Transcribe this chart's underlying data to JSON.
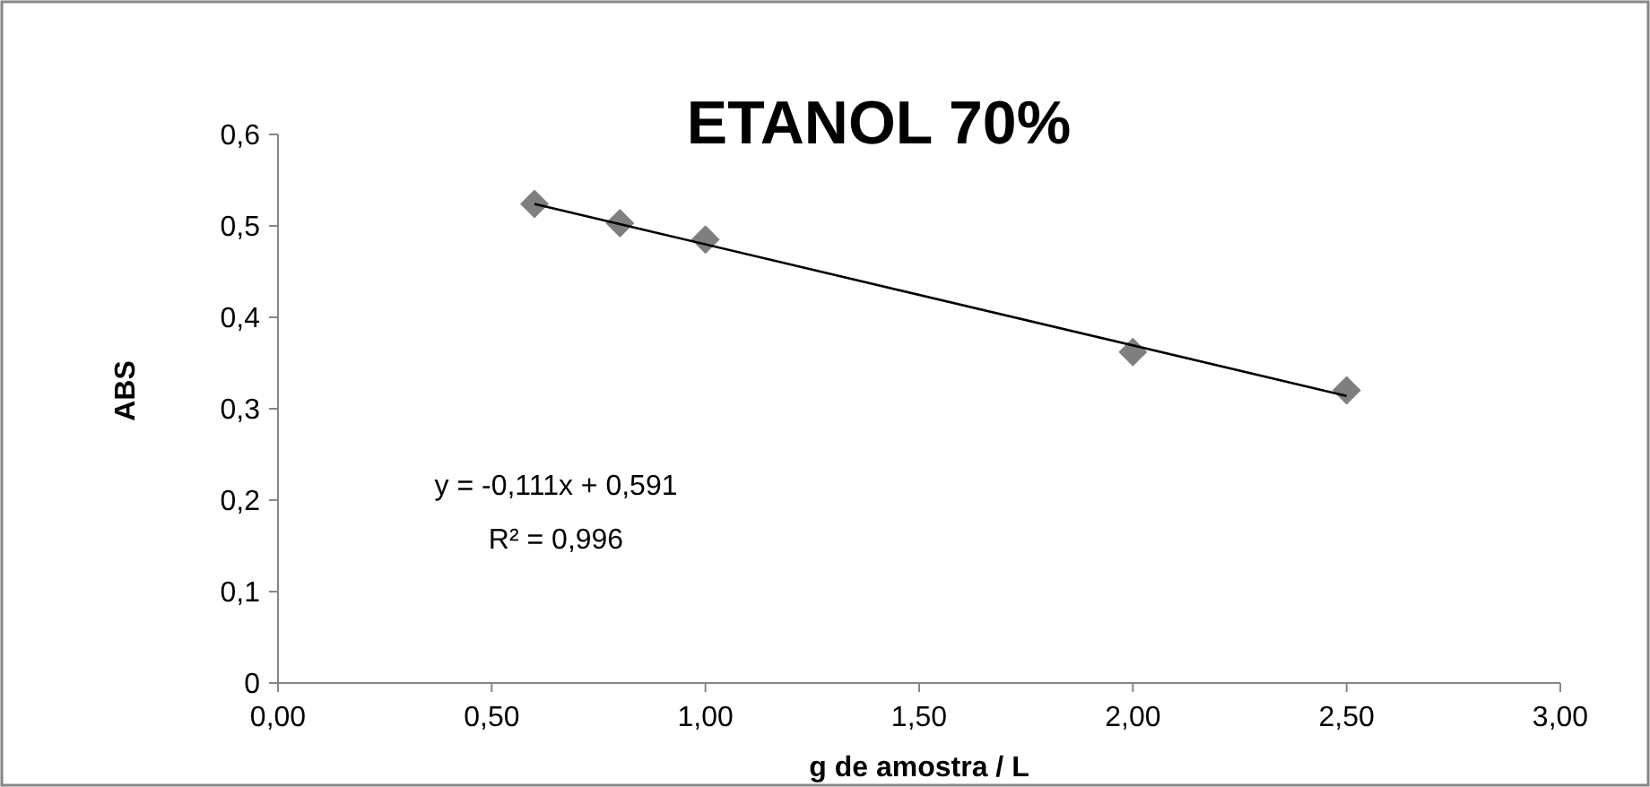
{
  "chart_data": {
    "type": "scatter",
    "title": "ETANOL 70%",
    "xlabel": "g de amostra / L",
    "ylabel": "ABS",
    "xlim": [
      0,
      3
    ],
    "xticks": [
      {
        "value": 0,
        "label": "0,00"
      },
      {
        "value": 0.5,
        "label": "0,50"
      },
      {
        "value": 1,
        "label": "1,00"
      },
      {
        "value": 1.5,
        "label": "1,50"
      },
      {
        "value": 2,
        "label": "2,00"
      },
      {
        "value": 2.5,
        "label": "2,50"
      },
      {
        "value": 3,
        "label": "3,00"
      }
    ],
    "ylim": [
      0,
      0.6
    ],
    "yticks": [
      0,
      {
        "value": 0.1,
        "label": "0,1"
      },
      {
        "value": 0.2,
        "label": "0,2"
      },
      {
        "value": 0.3,
        "label": "0,3"
      },
      {
        "value": 0.4,
        "label": "0,4"
      },
      {
        "value": 0.5,
        "label": "0,5"
      },
      {
        "value": 0.6,
        "label": "0,6"
      }
    ],
    "grid": false,
    "annotations": [
      "y = -0,111x + 0,591",
      "R² = 0,996"
    ],
    "series": [
      {
        "color": "#7f7f7f",
        "marker": "diamond",
        "x": [
          0.6,
          0.8,
          1.0,
          2.0,
          2.5
        ],
        "values": [
          0.524,
          0.503,
          0.485,
          0.362,
          0.32
        ]
      },
      {
        "type": "line",
        "color": "#000000",
        "marker": "none",
        "x": [
          0.6,
          2.5
        ],
        "values": [
          0.524,
          0.314
        ]
      }
    ]
  }
}
